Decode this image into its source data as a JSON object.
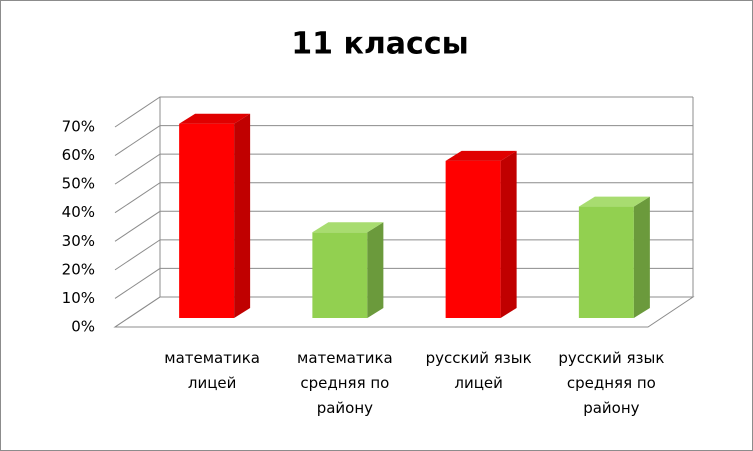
{
  "chart_data": {
    "type": "bar3d",
    "title": "11 классы",
    "categories": [
      "математика лицей",
      "математика средняя по району",
      "русский язык лицей",
      "русский язык средняя по району"
    ],
    "values": [
      68,
      30,
      55,
      39
    ],
    "colors": [
      "#ff0000",
      "#92d050",
      "#ff0000",
      "#92d050"
    ],
    "ylim": [
      0,
      70
    ],
    "yticks": [
      {
        "value": 0,
        "label": "0%"
      },
      {
        "value": 10,
        "label": "10%"
      },
      {
        "value": 20,
        "label": "20%"
      },
      {
        "value": 30,
        "label": "30%"
      },
      {
        "value": 40,
        "label": "40%"
      },
      {
        "value": 50,
        "label": "50%"
      },
      {
        "value": 60,
        "label": "60%"
      },
      {
        "value": 70,
        "label": "70%"
      }
    ],
    "grid": true
  }
}
